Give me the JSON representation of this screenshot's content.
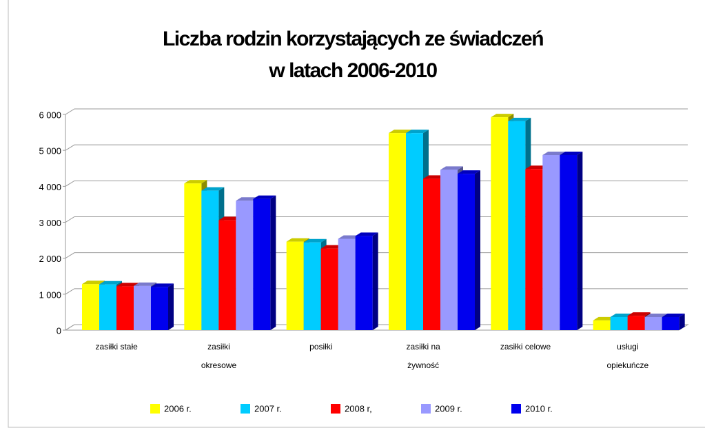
{
  "chart_data": {
    "type": "bar3d",
    "title": [
      "Liczba rodzin korzystających ze świadczeń",
      "w latach 2006-2010"
    ],
    "categories": [
      "zasiłki stałe",
      "zasiłki okresowe",
      "posiłki",
      "zasiłki na żywność",
      "zasiłki celowe",
      "usługi opiekuńcze"
    ],
    "series": [
      {
        "name": "2006 r.",
        "color": "#ffff00",
        "values": [
          1280,
          4080,
          2460,
          5480,
          5920,
          270
        ]
      },
      {
        "name": "2007 r.",
        "color": "#00ccff",
        "values": [
          1270,
          3880,
          2440,
          5480,
          5810,
          365
        ]
      },
      {
        "name": "2008 r,",
        "color": "#ff0000",
        "values": [
          1220,
          3060,
          2270,
          4210,
          4480,
          400
        ]
      },
      {
        "name": "2009 r.",
        "color": "#9999ff",
        "values": [
          1230,
          3600,
          2540,
          4460,
          4870,
          365
        ]
      },
      {
        "name": "2010 r.",
        "color": "#0000ee",
        "values": [
          1200,
          3650,
          2620,
          4350,
          4870,
          365
        ]
      }
    ],
    "ylim": [
      0,
      6000
    ],
    "yticks": [
      0,
      {
        "value": 1000,
        "label": "1 000"
      },
      {
        "value": 2000,
        "label": "2 000"
      },
      {
        "value": 3000,
        "label": "3 000"
      },
      {
        "value": 4000,
        "label": "4 000"
      },
      {
        "value": 5000,
        "label": "5 000"
      },
      {
        "value": 6000,
        "label": "6 000"
      }
    ],
    "grid": true,
    "legend": "bottom"
  }
}
